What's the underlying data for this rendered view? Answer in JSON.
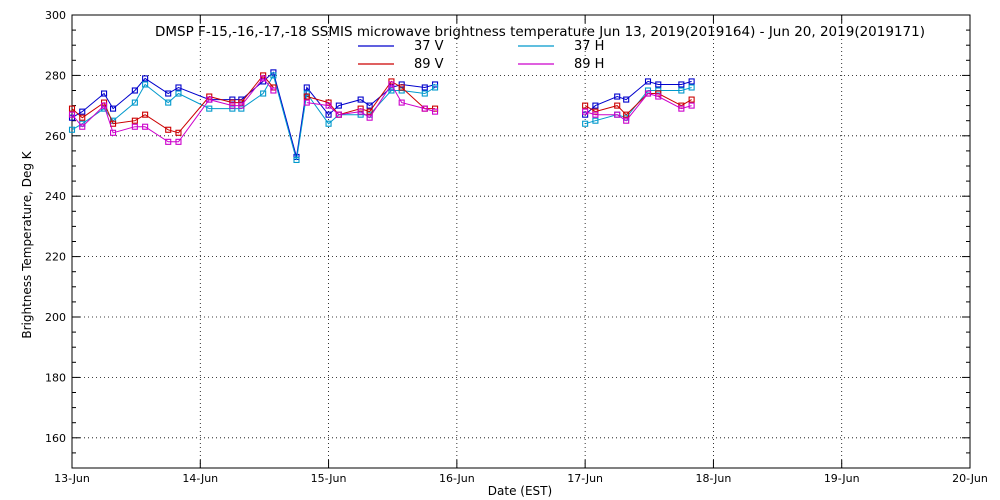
{
  "chart_data": {
    "type": "line",
    "title": "DMSP F-15,-16,-17,-18 SSMIS microwave brightness temperature Jun 13, 2019(2019164) - Jun 20, 2019(2019171)",
    "xlabel": "Date (EST)",
    "ylabel": "Brightness Temperature, Deg K",
    "xlim": [
      0,
      7
    ],
    "ylim": [
      150,
      300
    ],
    "x_ticks": [
      "13-Jun",
      "14-Jun",
      "15-Jun",
      "16-Jun",
      "17-Jun",
      "18-Jun",
      "19-Jun",
      "20-Jun"
    ],
    "y_ticks": [
      160,
      180,
      200,
      220,
      240,
      260,
      280,
      300
    ],
    "grid": true,
    "legend_position": "top-center",
    "series": [
      {
        "name": "37 V",
        "color": "#0000cc",
        "x": [
          0.0,
          0.08,
          0.25,
          0.32,
          0.49,
          0.57,
          0.75,
          0.83,
          1.07,
          1.25,
          1.32,
          1.49,
          1.57,
          1.75,
          1.83,
          2.0,
          2.08,
          2.25,
          2.32,
          2.49,
          2.57,
          2.75,
          2.83,
          3.0,
          3.08,
          3.25,
          3.32,
          3.49,
          3.57,
          3.75,
          3.83,
          4.0,
          4.08,
          4.25,
          4.32,
          4.49,
          4.57,
          4.75,
          4.83
        ],
        "values": [
          266,
          268,
          274,
          269,
          275,
          279,
          274,
          276,
          272,
          272,
          272,
          278,
          281,
          253,
          276,
          267,
          270,
          272,
          270,
          276,
          277,
          276,
          277,
          null,
          null,
          null,
          null,
          null,
          null,
          null,
          null,
          267,
          270,
          273,
          272,
          278,
          277,
          277,
          278
        ]
      },
      {
        "name": "37 H",
        "color": "#0099cc",
        "x": [
          0.0,
          0.08,
          0.25,
          0.32,
          0.49,
          0.57,
          0.75,
          0.83,
          1.07,
          1.25,
          1.32,
          1.49,
          1.57,
          1.75,
          1.83,
          2.0,
          2.08,
          2.25,
          2.32,
          2.49,
          2.57,
          2.75,
          2.83,
          3.0,
          3.08,
          3.25,
          3.32,
          3.49,
          3.57,
          3.75,
          3.83,
          4.0,
          4.08,
          4.25,
          4.32,
          4.49,
          4.57,
          4.75,
          4.83
        ],
        "values": [
          262,
          264,
          269,
          265,
          271,
          277,
          271,
          274,
          269,
          269,
          269,
          274,
          280,
          252,
          274,
          264,
          267,
          267,
          267,
          275,
          275,
          274,
          276,
          null,
          null,
          null,
          null,
          null,
          null,
          null,
          null,
          264,
          265,
          267,
          266,
          275,
          275,
          275,
          276
        ]
      },
      {
        "name": "89 V",
        "color": "#cc0000",
        "x": [
          0.0,
          0.08,
          0.25,
          0.32,
          0.49,
          0.57,
          0.75,
          0.83,
          1.07,
          1.25,
          1.32,
          1.49,
          1.57,
          1.75,
          1.83,
          2.0,
          2.08,
          2.25,
          2.32,
          2.49,
          2.57,
          2.75,
          2.83,
          3.0,
          3.08,
          3.25,
          3.32,
          3.49,
          3.57,
          3.75,
          3.83,
          4.0,
          4.08,
          4.25,
          4.32,
          4.49,
          4.57,
          4.75,
          4.83
        ],
        "values": [
          269,
          266,
          271,
          264,
          265,
          267,
          262,
          261,
          273,
          271,
          271,
          280,
          276,
          null,
          273,
          271,
          267,
          269,
          268,
          278,
          276,
          269,
          269,
          null,
          null,
          null,
          null,
          null,
          null,
          null,
          null,
          270,
          268,
          270,
          267,
          274,
          274,
          270,
          272
        ]
      },
      {
        "name": "89 H",
        "color": "#cc00cc",
        "x": [
          0.0,
          0.08,
          0.25,
          0.32,
          0.49,
          0.57,
          0.75,
          0.83,
          1.07,
          1.25,
          1.32,
          1.49,
          1.57,
          1.75,
          1.83,
          2.0,
          2.08,
          2.25,
          2.32,
          2.49,
          2.57,
          2.75,
          2.83,
          3.0,
          3.08,
          3.25,
          3.32,
          3.49,
          3.57,
          3.75,
          3.83,
          4.0,
          4.08,
          4.25,
          4.32,
          4.49,
          4.57,
          4.75,
          4.83
        ],
        "values": [
          267,
          263,
          270,
          261,
          263,
          263,
          258,
          258,
          272,
          270,
          270,
          279,
          275,
          null,
          271,
          270,
          267,
          268,
          266,
          277,
          271,
          269,
          268,
          null,
          null,
          null,
          null,
          null,
          null,
          null,
          null,
          268,
          267,
          267,
          265,
          274,
          273,
          269,
          270
        ]
      }
    ]
  }
}
